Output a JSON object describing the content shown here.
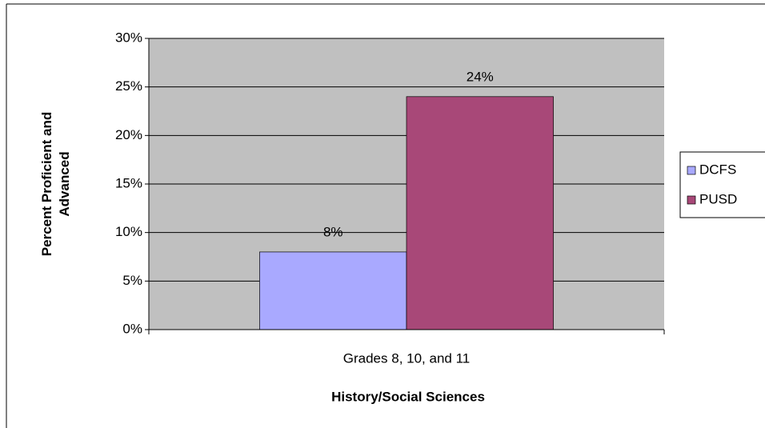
{
  "chart_data": {
    "type": "bar",
    "categories": [
      "Grades 8, 10, and 11"
    ],
    "series": [
      {
        "name": "DCFS",
        "color": "#a9a9ff",
        "values": [
          8
        ],
        "value_labels": [
          "8%"
        ]
      },
      {
        "name": "PUSD",
        "color": "#a84878",
        "values": [
          24
        ],
        "value_labels": [
          "24%"
        ]
      }
    ],
    "x_label": "History/Social Sciences",
    "y_label": "Percent Proficient and Advanced",
    "ylim": [
      0,
      30
    ],
    "yticks": [
      {
        "value": 0,
        "label": "0%"
      },
      {
        "value": 5,
        "label": "5%"
      },
      {
        "value": 10,
        "label": "10%"
      },
      {
        "value": 15,
        "label": "15%"
      },
      {
        "value": 20,
        "label": "20%"
      },
      {
        "value": 25,
        "label": "25%"
      },
      {
        "value": 30,
        "label": "30%"
      }
    ],
    "grid": true,
    "legend": "right",
    "plot_background": "#c0c0c0"
  }
}
